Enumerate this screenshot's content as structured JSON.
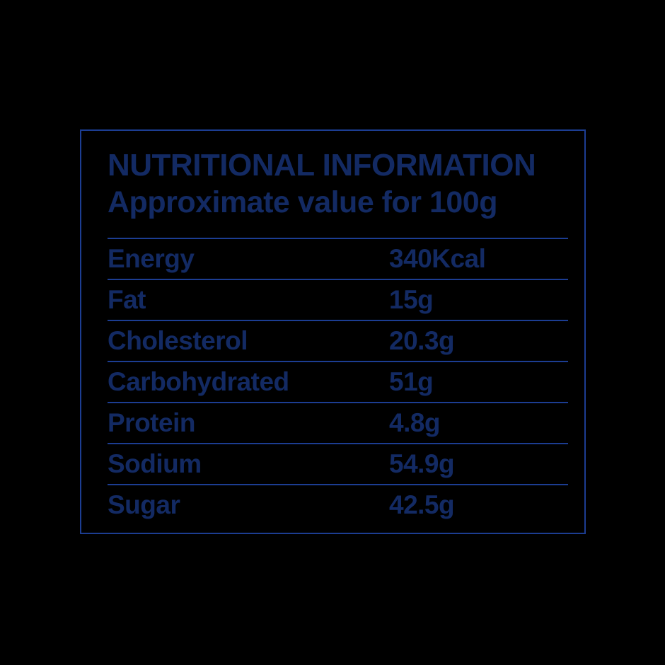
{
  "page": {
    "background_color": "#000000",
    "text_color": "#132a63",
    "line_color": "#1c3d92"
  },
  "card": {
    "title": "NUTRITIONAL INFORMATION",
    "subtitle": "Approximate value for 100g"
  },
  "table": {
    "rows": [
      {
        "label": "Energy",
        "value": "340Kcal"
      },
      {
        "label": "Fat",
        "value": "15g"
      },
      {
        "label": "Cholesterol",
        "value": "20.3g"
      },
      {
        "label": "Carbohydrated",
        "value": "51g"
      },
      {
        "label": "Protein",
        "value": "4.8g"
      },
      {
        "label": "Sodium",
        "value": "54.9g"
      },
      {
        "label": "Sugar",
        "value": "42.5g"
      }
    ]
  }
}
